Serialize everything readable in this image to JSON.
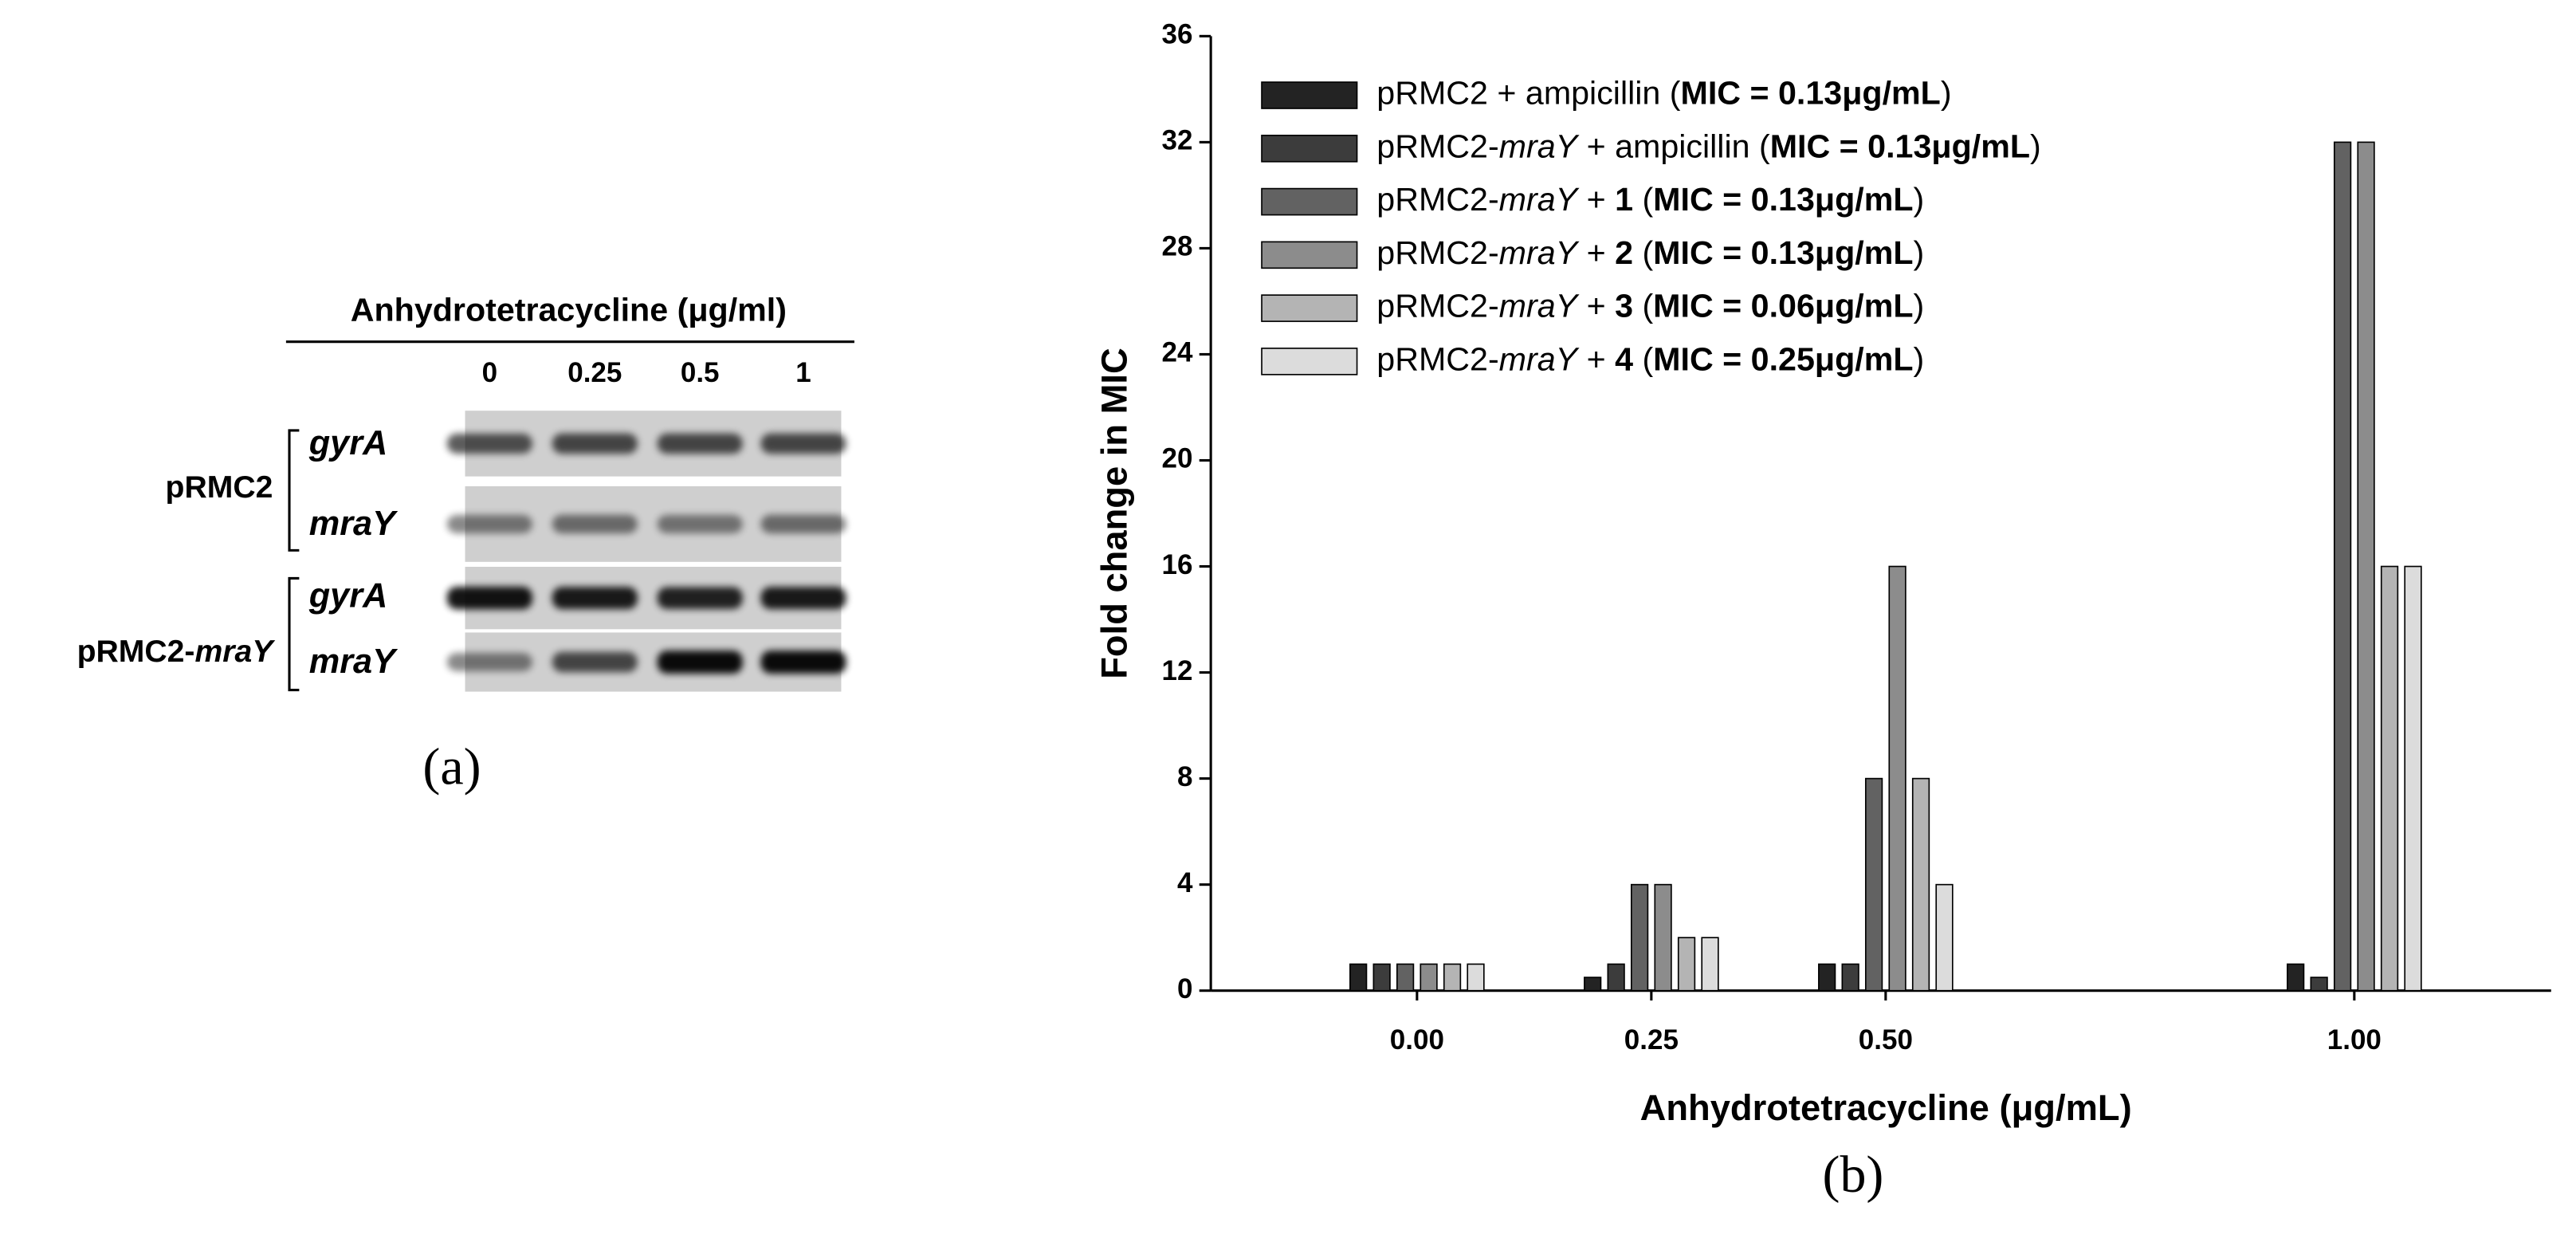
{
  "gel": {
    "header": "Anhydrotetracycline (μg/ml)",
    "lanes": [
      "0",
      "0.25",
      "0.5",
      "1"
    ],
    "groups": [
      {
        "label": "pRMC2",
        "genes": [
          "gyrA",
          "mraY"
        ]
      },
      {
        "label": "pRMC2-mraY",
        "genes": [
          "gyrA",
          "mraY"
        ]
      }
    ],
    "panel_label": "(a)"
  },
  "chart_data": {
    "type": "bar",
    "panel_label": "(b)",
    "xlabel": "Anhydrotetracycline (μg/mL)",
    "ylabel": "Fold change in MIC",
    "x": [
      0,
      0.25,
      0.5,
      1
    ],
    "xlim": [
      -0.22,
      1.21
    ],
    "xticks": [
      {
        "value": 0,
        "label": "0.00"
      },
      {
        "value": 0.25,
        "label": "0.25"
      },
      {
        "value": 0.5,
        "label": "0.50"
      },
      {
        "value": 1,
        "label": "1.00"
      }
    ],
    "ylim": [
      0,
      36
    ],
    "yticks": [
      0,
      4,
      8,
      12,
      16,
      20,
      24,
      28,
      32,
      36
    ],
    "grid": false,
    "legend": "upper left",
    "series": [
      {
        "name": "pRMC2 + ampicillin (MIC = 0.13μg/mL)",
        "color": "#232323",
        "values": [
          1,
          0.5,
          1,
          1
        ]
      },
      {
        "name": "pRMC2-mraY + ampicillin (MIC = 0.13μg/mL)",
        "color": "#3c3c3c",
        "values": [
          1,
          1,
          1,
          0.5
        ]
      },
      {
        "name": "pRMC2-mraY + 1 (MIC = 0.13μg/mL)",
        "color": "#626262",
        "values": [
          1,
          4,
          8,
          32
        ]
      },
      {
        "name": "pRMC2-mraY + 2 (MIC = 0.13μg/mL)",
        "color": "#8c8c8c",
        "values": [
          1,
          4,
          16,
          32
        ]
      },
      {
        "name": "pRMC2-mraY + 3 (MIC = 0.06μg/mL)",
        "color": "#b4b4b4",
        "values": [
          1,
          2,
          8,
          16
        ]
      },
      {
        "name": "pRMC2-mraY + 4 (MIC = 0.25μg/mL)",
        "color": "#dcdcdc",
        "values": [
          1,
          2,
          4,
          16
        ]
      }
    ]
  }
}
